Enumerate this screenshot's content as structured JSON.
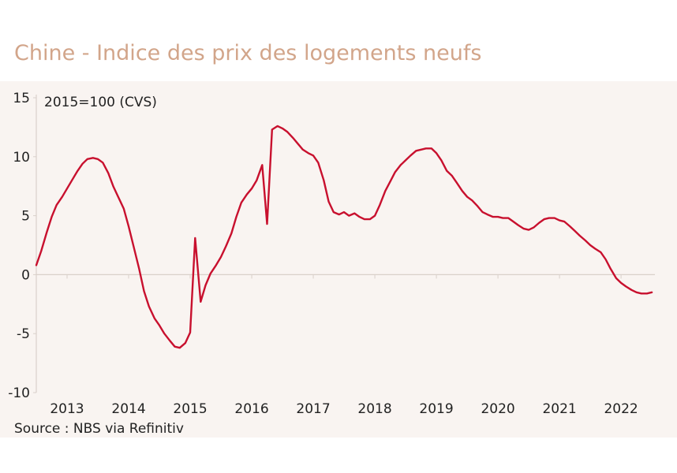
{
  "chart_data": {
    "type": "line",
    "title": "Chine - Indice des prix des logements neufs",
    "annotation": "2015=100 (CVS)",
    "source": "Source : NBS via Refinitiv",
    "ylim": [
      -10,
      15
    ],
    "yticks": [
      "-10",
      "-5",
      "0",
      "5",
      "10",
      "15"
    ],
    "xlim": [
      2012.5,
      2022.55
    ],
    "xticks": [
      "2013",
      "2014",
      "2015",
      "2016",
      "2017",
      "2018",
      "2019",
      "2020",
      "2021",
      "2022"
    ],
    "grid": false,
    "color": "#c8102e",
    "series": [
      {
        "name": "",
        "points": [
          [
            2012.5,
            0.8
          ],
          [
            2012.58,
            2.0
          ],
          [
            2012.67,
            3.6
          ],
          [
            2012.75,
            4.9
          ],
          [
            2012.83,
            5.9
          ],
          [
            2012.92,
            6.6
          ],
          [
            2013.0,
            7.3
          ],
          [
            2013.08,
            8.0
          ],
          [
            2013.17,
            8.8
          ],
          [
            2013.25,
            9.4
          ],
          [
            2013.33,
            9.8
          ],
          [
            2013.42,
            9.9
          ],
          [
            2013.5,
            9.8
          ],
          [
            2013.58,
            9.5
          ],
          [
            2013.67,
            8.6
          ],
          [
            2013.75,
            7.5
          ],
          [
            2013.83,
            6.6
          ],
          [
            2013.92,
            5.6
          ],
          [
            2014.0,
            4.1
          ],
          [
            2014.08,
            2.4
          ],
          [
            2014.17,
            0.5
          ],
          [
            2014.25,
            -1.4
          ],
          [
            2014.33,
            -2.7
          ],
          [
            2014.42,
            -3.7
          ],
          [
            2014.5,
            -4.3
          ],
          [
            2014.58,
            -5.0
          ],
          [
            2014.67,
            -5.6
          ],
          [
            2014.75,
            -6.1
          ],
          [
            2014.83,
            -6.2
          ],
          [
            2014.92,
            -5.8
          ],
          [
            2015.0,
            -4.9
          ],
          [
            2015.08,
            3.1
          ],
          [
            2015.17,
            -2.3
          ],
          [
            2015.25,
            -0.9
          ],
          [
            2015.33,
            0.1
          ],
          [
            2015.42,
            0.8
          ],
          [
            2015.5,
            1.5
          ],
          [
            2015.58,
            2.4
          ],
          [
            2015.67,
            3.5
          ],
          [
            2015.75,
            4.9
          ],
          [
            2015.83,
            6.1
          ],
          [
            2015.92,
            6.8
          ],
          [
            2016.0,
            7.3
          ],
          [
            2016.08,
            8.0
          ],
          [
            2016.17,
            9.3
          ],
          [
            2016.25,
            4.3
          ],
          [
            2016.33,
            12.3
          ],
          [
            2016.42,
            12.6
          ],
          [
            2016.5,
            12.4
          ],
          [
            2016.58,
            12.1
          ],
          [
            2016.67,
            11.6
          ],
          [
            2016.75,
            11.1
          ],
          [
            2016.83,
            10.6
          ],
          [
            2016.92,
            10.3
          ],
          [
            2017.0,
            10.1
          ],
          [
            2017.08,
            9.5
          ],
          [
            2017.17,
            8.0
          ],
          [
            2017.25,
            6.2
          ],
          [
            2017.33,
            5.3
          ],
          [
            2017.42,
            5.1
          ],
          [
            2017.5,
            5.3
          ],
          [
            2017.58,
            5.0
          ],
          [
            2017.67,
            5.2
          ],
          [
            2017.75,
            4.9
          ],
          [
            2017.83,
            4.7
          ],
          [
            2017.92,
            4.7
          ],
          [
            2018.0,
            5.0
          ],
          [
            2018.08,
            5.9
          ],
          [
            2018.17,
            7.1
          ],
          [
            2018.25,
            7.9
          ],
          [
            2018.33,
            8.7
          ],
          [
            2018.42,
            9.3
          ],
          [
            2018.5,
            9.7
          ],
          [
            2018.58,
            10.1
          ],
          [
            2018.67,
            10.5
          ],
          [
            2018.75,
            10.6
          ],
          [
            2018.83,
            10.7
          ],
          [
            2018.92,
            10.7
          ],
          [
            2019.0,
            10.3
          ],
          [
            2019.08,
            9.7
          ],
          [
            2019.17,
            8.8
          ],
          [
            2019.25,
            8.4
          ],
          [
            2019.33,
            7.8
          ],
          [
            2019.42,
            7.1
          ],
          [
            2019.5,
            6.6
          ],
          [
            2019.58,
            6.3
          ],
          [
            2019.67,
            5.8
          ],
          [
            2019.75,
            5.3
          ],
          [
            2019.83,
            5.1
          ],
          [
            2019.92,
            4.9
          ],
          [
            2020.0,
            4.9
          ],
          [
            2020.08,
            4.8
          ],
          [
            2020.17,
            4.8
          ],
          [
            2020.25,
            4.5
          ],
          [
            2020.33,
            4.2
          ],
          [
            2020.42,
            3.9
          ],
          [
            2020.5,
            3.8
          ],
          [
            2020.58,
            4.0
          ],
          [
            2020.67,
            4.4
          ],
          [
            2020.75,
            4.7
          ],
          [
            2020.83,
            4.8
          ],
          [
            2020.92,
            4.8
          ],
          [
            2021.0,
            4.6
          ],
          [
            2021.08,
            4.5
          ],
          [
            2021.17,
            4.1
          ],
          [
            2021.25,
            3.7
          ],
          [
            2021.33,
            3.3
          ],
          [
            2021.42,
            2.9
          ],
          [
            2021.5,
            2.5
          ],
          [
            2021.58,
            2.2
          ],
          [
            2021.67,
            1.9
          ],
          [
            2021.75,
            1.3
          ],
          [
            2021.83,
            0.5
          ],
          [
            2021.92,
            -0.3
          ],
          [
            2022.0,
            -0.7
          ],
          [
            2022.08,
            -1.0
          ],
          [
            2022.17,
            -1.3
          ],
          [
            2022.25,
            -1.5
          ],
          [
            2022.33,
            -1.6
          ],
          [
            2022.42,
            -1.6
          ],
          [
            2022.5,
            -1.5
          ]
        ]
      }
    ]
  }
}
